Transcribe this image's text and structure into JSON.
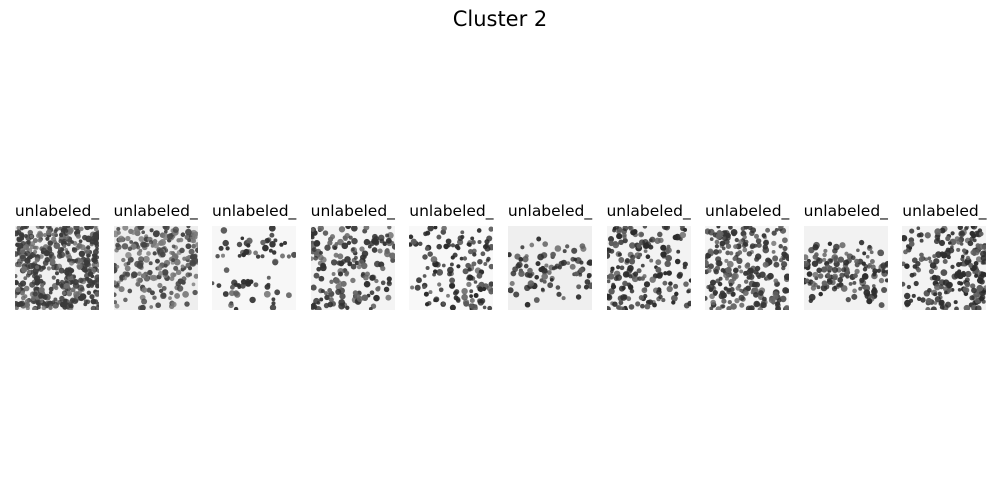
{
  "figure": {
    "title": "Cluster 2"
  },
  "images": [
    {
      "title": "unlabeled_",
      "bg": "#f1f1f1",
      "dark": "#3a3a3a",
      "mid": "#6e6e6e",
      "density": 1.0,
      "pattern": "uniform"
    },
    {
      "title": "unlabeled_",
      "bg": "#eeeeee",
      "dark": "#454545",
      "mid": "#7a7a7a",
      "density": 0.85,
      "pattern": "top-heavy"
    },
    {
      "title": "unlabeled_",
      "bg": "#f7f7f7",
      "dark": "#2f2f2f",
      "mid": "#606060",
      "density": 0.45,
      "pattern": "clusters"
    },
    {
      "title": "unlabeled_",
      "bg": "#f4f4f4",
      "dark": "#333333",
      "mid": "#656565",
      "density": 0.65,
      "pattern": "left-heavy"
    },
    {
      "title": "unlabeled_",
      "bg": "#f8f8f8",
      "dark": "#2a2a2a",
      "mid": "#5a5a5a",
      "density": 0.55,
      "pattern": "right-heavy"
    },
    {
      "title": "unlabeled_",
      "bg": "#efefef",
      "dark": "#2e2e2e",
      "mid": "#5e5e5e",
      "density": 0.55,
      "pattern": "band"
    },
    {
      "title": "unlabeled_",
      "bg": "#f3f3f3",
      "dark": "#2b2b2b",
      "mid": "#5c5c5c",
      "density": 0.7,
      "pattern": "left-heavy"
    },
    {
      "title": "unlabeled_",
      "bg": "#f5f5f5",
      "dark": "#353535",
      "mid": "#666666",
      "density": 0.6,
      "pattern": "uniform"
    },
    {
      "title": "unlabeled_",
      "bg": "#f2f2f2",
      "dark": "#2d2d2d",
      "mid": "#5d5d5d",
      "density": 0.75,
      "pattern": "band"
    },
    {
      "title": "unlabeled_",
      "bg": "#f3f3f3",
      "dark": "#2c2c2c",
      "mid": "#5f5f5f",
      "density": 0.8,
      "pattern": "right-heavy"
    }
  ]
}
